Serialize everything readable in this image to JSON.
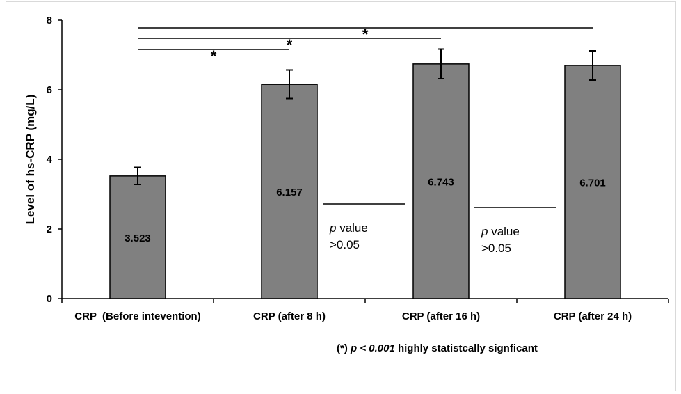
{
  "chart_data": {
    "type": "bar",
    "categories": [
      "CRP  (Before intevention)",
      "CRP (after 8 h)",
      "CRP (after 16 h)",
      "CRP (after 24 h)"
    ],
    "values": [
      3.523,
      6.157,
      6.743,
      6.701
    ],
    "value_labels": [
      "3.523",
      "6.157",
      "6.743",
      "6.701"
    ],
    "error_bars": [
      {
        "low": 3.28,
        "high": 3.77
      },
      {
        "low": 5.75,
        "high": 6.57
      },
      {
        "low": 6.32,
        "high": 7.17
      },
      {
        "low": 6.28,
        "high": 7.12
      }
    ],
    "ylabel": "Level of hs-CRP (mg/L)",
    "xlabel": "",
    "ylim": [
      0,
      8
    ],
    "yticks": [
      "0",
      "2",
      "4",
      "6",
      "8"
    ],
    "grid": false,
    "bar_color": "#808080",
    "significance": [
      {
        "from": 0,
        "to": 1,
        "symbol": "*"
      },
      {
        "from": 0,
        "to": 2,
        "symbol": "*"
      },
      {
        "from": 0,
        "to": 3,
        "symbol": "*"
      }
    ],
    "nonsignificant_notes": [
      {
        "between": [
          1,
          2
        ],
        "p_italic": "p",
        "rest": " value",
        "line2": ">0.05"
      },
      {
        "between": [
          2,
          3
        ],
        "p_italic": "p",
        "rest": " value",
        "line2": ">0.05"
      }
    ],
    "footnote": {
      "prefix": "(*) ",
      "italic": "p < 0.001",
      "suffix": " highly statistcally signficant"
    }
  }
}
